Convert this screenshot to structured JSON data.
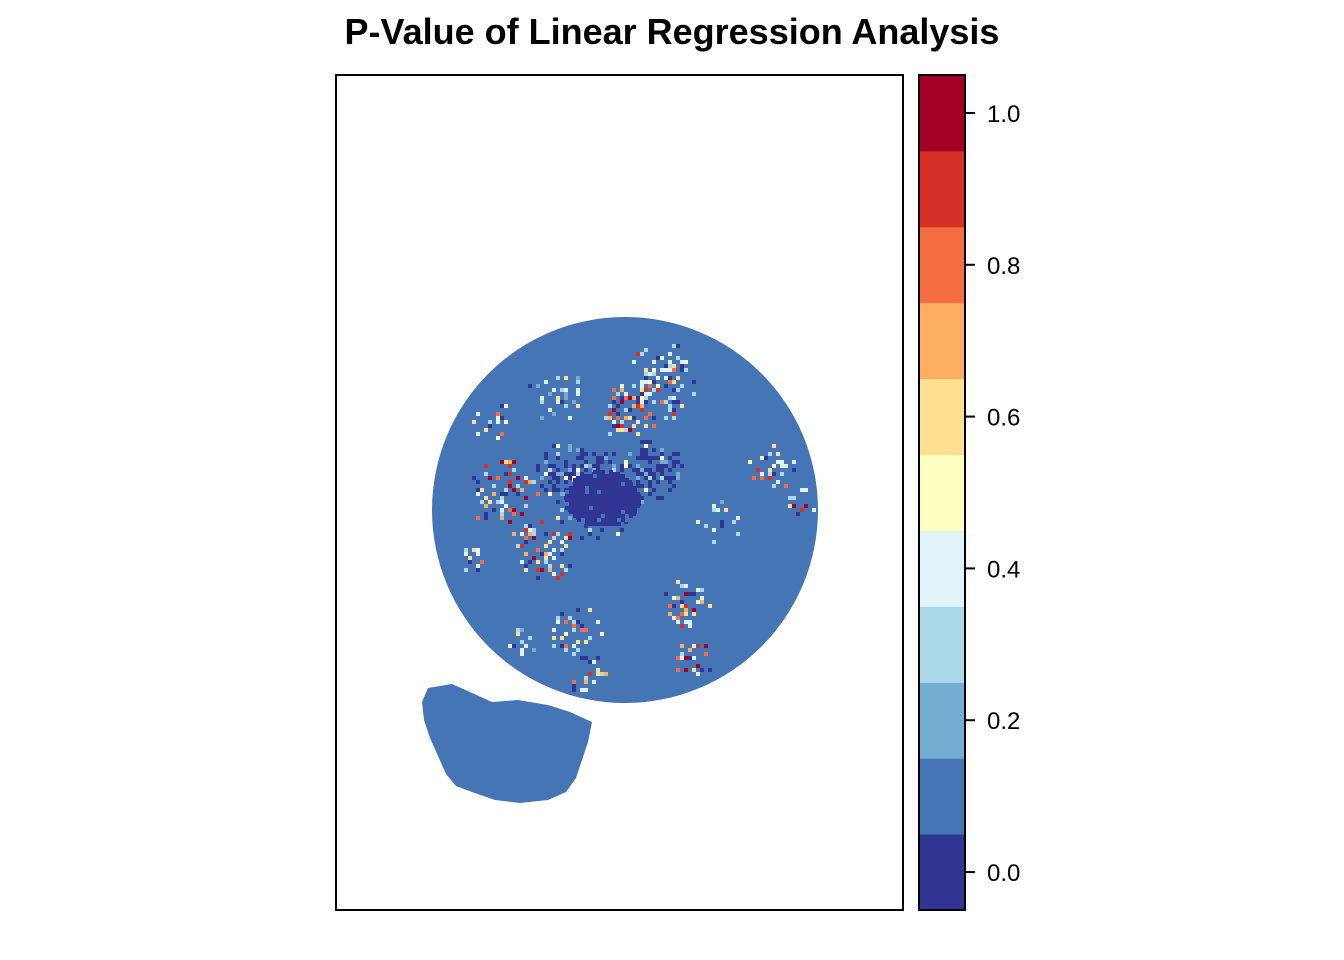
{
  "chart_data": {
    "type": "heatmap",
    "title": "P-Value of Linear Regression Analysis",
    "xlabel": "",
    "ylabel": "",
    "grid": false,
    "legend": {
      "position": "right",
      "kind": "colorbar",
      "range": [
        -0.05,
        1.05
      ],
      "breaks": [
        -0.05,
        0.05,
        0.15,
        0.25,
        0.35,
        0.45,
        0.55,
        0.65,
        0.75,
        0.85,
        0.95,
        1.05
      ],
      "colors": [
        "#313695",
        "#4575b4",
        "#74add1",
        "#abd9e9",
        "#e0f3f8",
        "#ffffbf",
        "#fee090",
        "#fdae61",
        "#f46d43",
        "#d73027",
        "#a50026"
      ],
      "ticks": [
        0.0,
        0.2,
        0.4,
        0.6,
        0.8,
        1.0
      ],
      "tick_labels": [
        "0.0",
        "0.2",
        "0.4",
        "0.6",
        "0.8",
        "1.0"
      ]
    },
    "map": {
      "background_value": 0.1,
      "description_regions": [
        "circular polar domain",
        "southern lobe"
      ]
    }
  }
}
